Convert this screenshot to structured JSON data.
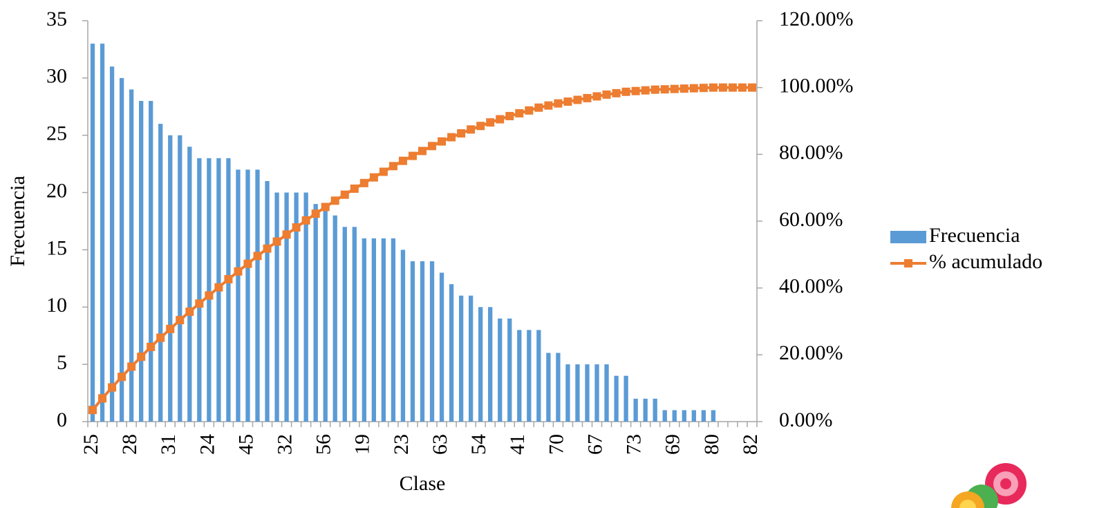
{
  "chart_data": {
    "type": "bar",
    "x_label": "Clase",
    "y_label": "Frecuencia",
    "categories": [
      "25",
      null,
      null,
      null,
      "28",
      null,
      null,
      null,
      "31",
      null,
      null,
      null,
      "24",
      null,
      null,
      null,
      "45",
      null,
      null,
      null,
      "32",
      null,
      null,
      null,
      "56",
      null,
      null,
      null,
      "19",
      null,
      null,
      null,
      "23",
      null,
      null,
      null,
      "63",
      null,
      null,
      null,
      "54",
      null,
      null,
      null,
      "41",
      null,
      null,
      null,
      "70",
      null,
      null,
      null,
      "67",
      null,
      null,
      null,
      "73",
      null,
      null,
      null,
      "69",
      null,
      null,
      null,
      "80",
      null,
      null,
      null,
      "82"
    ],
    "series": [
      {
        "name": "Frecuencia",
        "type": "bar",
        "color": "#5b9bd5",
        "values": [
          33,
          33,
          31,
          30,
          29,
          28,
          28,
          26,
          25,
          25,
          24,
          23,
          23,
          23,
          23,
          22,
          22,
          22,
          21,
          20,
          20,
          20,
          20,
          19,
          19,
          18,
          17,
          17,
          16,
          16,
          16,
          16,
          15,
          14,
          14,
          14,
          13,
          12,
          11,
          11,
          10,
          10,
          9,
          9,
          8,
          8,
          8,
          6,
          6,
          5,
          5,
          5,
          5,
          5,
          4,
          4,
          2,
          2,
          2,
          1,
          1,
          1,
          1,
          1,
          1,
          0,
          0,
          0,
          0
        ]
      },
      {
        "name": "% acumulado",
        "type": "line",
        "axis": "y2",
        "color": "#ed7d31",
        "values": [
          3.48,
          6.96,
          10.23,
          13.4,
          16.46,
          19.41,
          22.36,
          25.11,
          27.74,
          30.38,
          32.91,
          35.34,
          37.76,
          40.19,
          42.62,
          44.94,
          47.26,
          49.58,
          51.79,
          53.9,
          56.01,
          58.12,
          60.23,
          62.24,
          64.24,
          66.14,
          67.93,
          69.73,
          71.41,
          73.1,
          74.79,
          76.48,
          78.06,
          79.54,
          81.01,
          82.49,
          83.86,
          85.13,
          86.29,
          87.45,
          88.5,
          89.56,
          90.51,
          91.46,
          92.3,
          93.14,
          93.99,
          94.62,
          95.25,
          95.78,
          96.31,
          96.84,
          97.36,
          97.89,
          98.31,
          98.73,
          98.95,
          99.16,
          99.37,
          99.47,
          99.58,
          99.68,
          99.79,
          99.89,
          100,
          100,
          100,
          100,
          100
        ]
      }
    ],
    "ylim": [
      0,
      35
    ],
    "yticks": [
      0,
      5,
      10,
      15,
      20,
      25,
      30,
      35
    ],
    "y2lim": [
      0,
      120
    ],
    "y2ticks": [
      {
        "value": 0,
        "label": "0.00%"
      },
      {
        "value": 20,
        "label": "20.00%"
      },
      {
        "value": 40,
        "label": "40.00%"
      },
      {
        "value": 60,
        "label": "60.00%"
      },
      {
        "value": 80,
        "label": "80.00%"
      },
      {
        "value": 100,
        "label": "100.00%"
      },
      {
        "value": 120,
        "label": "120.00%"
      }
    ],
    "legend": "right",
    "grid": false
  }
}
